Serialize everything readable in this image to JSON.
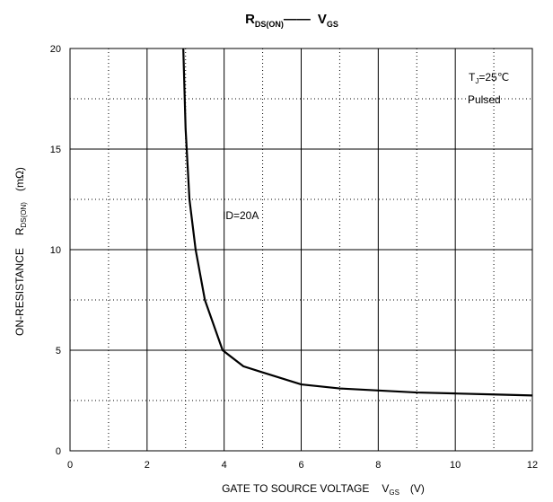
{
  "chart_data": {
    "type": "line",
    "title": {
      "main1": "R",
      "sub1": "DS(ON)",
      "sep": "——",
      "main2": "V",
      "sub2": "GS"
    },
    "x_label": {
      "text": "GATE TO SOURCE VOLTAGE",
      "sym": "V",
      "sub": "GS",
      "unit": "(V)"
    },
    "y_label": {
      "text": "ON-RESISTANCE",
      "sym": "R",
      "sub": "DS(ON)",
      "unit": "(mΩ)"
    },
    "annotations": {
      "tj": "T",
      "tj_sub": "J",
      "tj_val": "=25℃",
      "pulsed": "Pulsed",
      "id": "ID=20A"
    },
    "x": [
      2.94,
      3.0,
      3.1,
      3.26,
      3.5,
      3.96,
      4.5,
      5,
      6,
      7,
      8,
      9,
      10,
      11,
      12
    ],
    "values": [
      20,
      16,
      12.5,
      10,
      7.5,
      5,
      4.2,
      3.9,
      3.3,
      3.1,
      3.0,
      2.9,
      2.85,
      2.8,
      2.75
    ],
    "color": "#000000",
    "xlim": [
      0,
      12
    ],
    "ylim": [
      0,
      20
    ],
    "xticks": [
      0,
      2,
      4,
      6,
      8,
      10,
      12
    ],
    "yticks": [
      0,
      5,
      10,
      15,
      20
    ],
    "xminor": [
      1,
      3,
      5,
      7,
      9,
      11
    ],
    "yminor": [
      2.5,
      7.5,
      12.5,
      17.5
    ],
    "grid": true
  }
}
